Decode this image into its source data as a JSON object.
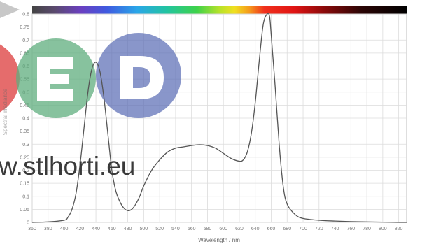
{
  "chart_data": {
    "type": "line",
    "title": "",
    "xlabel": "Wavelength / nm",
    "ylabel": "Spectral irradiance",
    "xlim": [
      360,
      830
    ],
    "ylim": [
      0,
      0.8
    ],
    "x_ticks": [
      360,
      380,
      400,
      420,
      440,
      460,
      480,
      500,
      520,
      540,
      560,
      580,
      600,
      620,
      640,
      660,
      680,
      700,
      720,
      740,
      760,
      780,
      800,
      820
    ],
    "y_ticks": [
      0,
      0.05,
      0.1,
      0.15,
      0.2,
      0.25,
      0.3,
      0.35,
      0.4,
      0.45,
      0.5,
      0.55,
      0.6,
      0.65,
      0.7,
      0.75,
      0.8
    ],
    "grid": true,
    "spectrum_bar": true,
    "series": [
      {
        "color": "#555555",
        "x": [
          360,
          380,
          400,
          405,
          410,
          415,
          420,
          425,
          430,
          435,
          440,
          445,
          450,
          455,
          460,
          465,
          470,
          475,
          480,
          485,
          490,
          495,
          500,
          510,
          520,
          530,
          540,
          550,
          560,
          570,
          580,
          590,
          600,
          610,
          620,
          625,
          630,
          635,
          640,
          645,
          650,
          655,
          658,
          660,
          665,
          670,
          675,
          680,
          690,
          700,
          720,
          740,
          760,
          780,
          800,
          820,
          830
        ],
        "y": [
          0.0,
          0.002,
          0.008,
          0.02,
          0.05,
          0.11,
          0.22,
          0.36,
          0.5,
          0.59,
          0.615,
          0.58,
          0.48,
          0.34,
          0.2,
          0.12,
          0.08,
          0.055,
          0.045,
          0.05,
          0.07,
          0.1,
          0.14,
          0.2,
          0.24,
          0.27,
          0.285,
          0.29,
          0.295,
          0.298,
          0.295,
          0.285,
          0.265,
          0.245,
          0.235,
          0.24,
          0.27,
          0.34,
          0.46,
          0.62,
          0.76,
          0.8,
          0.79,
          0.72,
          0.52,
          0.3,
          0.14,
          0.07,
          0.03,
          0.015,
          0.008,
          0.005,
          0.003,
          0.002,
          0.001,
          0.0,
          0.0
        ]
      }
    ]
  },
  "watermark": {
    "logo_letters": [
      "E",
      "D"
    ],
    "url": "w.stlhorti.eu",
    "colors": {
      "red": "#e05252",
      "green": "#5fae7e",
      "blue": "#5b6db5"
    }
  }
}
